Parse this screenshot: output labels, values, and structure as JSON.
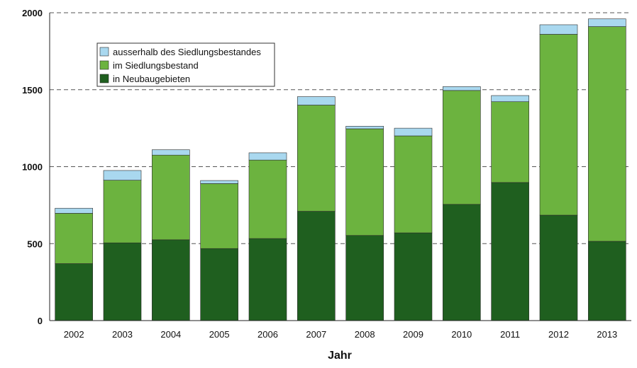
{
  "chart_data": {
    "type": "bar",
    "stacked": true,
    "categories": [
      "2002",
      "2003",
      "2004",
      "2005",
      "2006",
      "2007",
      "2008",
      "2009",
      "2010",
      "2011",
      "2012",
      "2013"
    ],
    "series": [
      {
        "name": "in Neubaugebieten",
        "color": "#1f5f1f",
        "values": [
          370,
          505,
          525,
          468,
          533,
          710,
          553,
          570,
          755,
          897,
          685,
          515
        ]
      },
      {
        "name": "im Siedlungsbestand",
        "color": "#6cb33f",
        "values": [
          327,
          407,
          550,
          422,
          510,
          690,
          693,
          630,
          740,
          525,
          1175,
          1395
        ]
      },
      {
        "name": "ausserhalb des Siedlungsbestandes",
        "color": "#a9d8ef",
        "values": [
          33,
          63,
          35,
          20,
          47,
          55,
          17,
          50,
          25,
          40,
          62,
          50
        ]
      }
    ],
    "legend_order": [
      "ausserhalb des Siedlungsbestandes",
      "im Siedlungsbestand",
      "in Neubaugebieten"
    ],
    "legend_position": "top-left",
    "xlabel": "Jahr",
    "ylabel": "",
    "ylim": [
      0,
      2000
    ],
    "yticks": [
      0,
      500,
      1000,
      1500,
      2000
    ],
    "grid": "horizontal-dashed"
  }
}
